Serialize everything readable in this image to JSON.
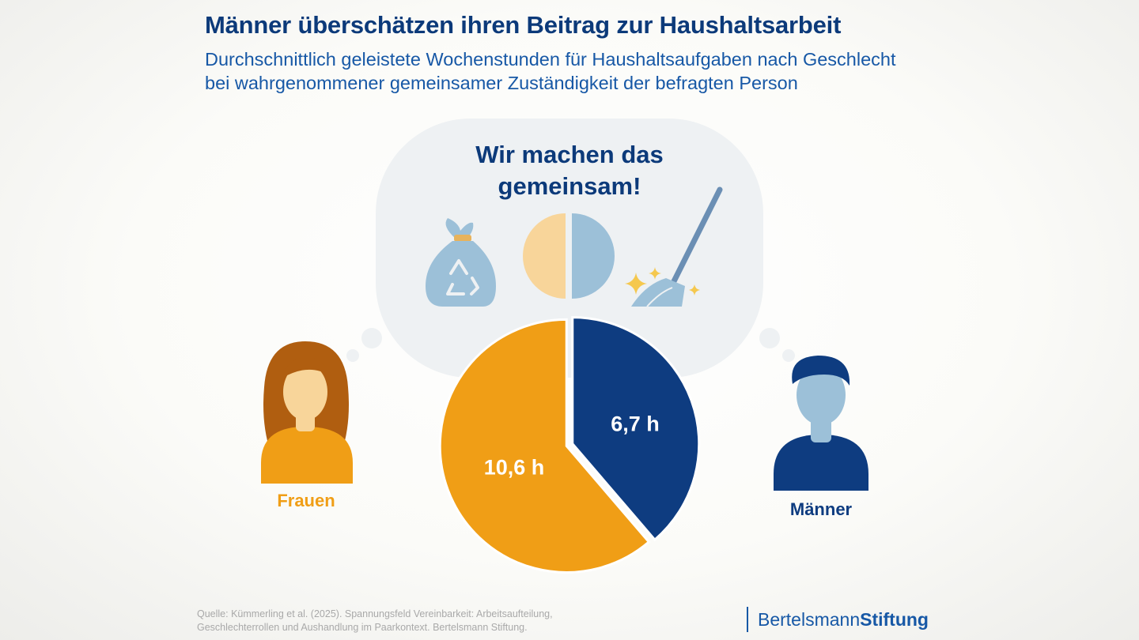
{
  "header": {
    "title": "Männer überschätzen ihren Beitrag zur Haushaltsarbeit",
    "subtitle_line1": "Durchschnittlich geleistete Wochenstunden für Haushaltsaufgaben nach Geschlecht",
    "subtitle_line2": "bei wahrgenommener gemeinsamer Zuständigkeit der befragten Person"
  },
  "bubble": {
    "line1": "Wir machen das",
    "line2": "gemeinsam!",
    "icons": [
      "trash-bag-recycle-icon",
      "half-half-circle-icon",
      "broom-sparkle-icon"
    ]
  },
  "colors": {
    "frauen": "#f09e16",
    "maenner": "#0e3c80",
    "title": "#0c3a7a",
    "subtitle": "#1758a6",
    "bubble": "#eef1f3",
    "light_blue": "#9cc0d8",
    "light_yellow": "#f8d59a"
  },
  "chart_data": {
    "type": "pie",
    "title": "",
    "slices": [
      {
        "label": "Frauen",
        "value": 10.6,
        "display": "10,6 h",
        "color": "#f09e16"
      },
      {
        "label": "Männer",
        "value": 6.7,
        "display": "6,7 h",
        "color": "#0e3c80"
      }
    ],
    "unit": "h"
  },
  "footer": {
    "source_line1": "Quelle: Kümmerling et al. (2025). Spannungsfeld Vereinbarkeit: Arbeitsaufteilung,",
    "source_line2": "Geschlechterrollen und Aushandlung im Paarkontext. Bertelsmann Stiftung.",
    "logo_part1": "Bertelsmann",
    "logo_part2": "Stiftung"
  }
}
